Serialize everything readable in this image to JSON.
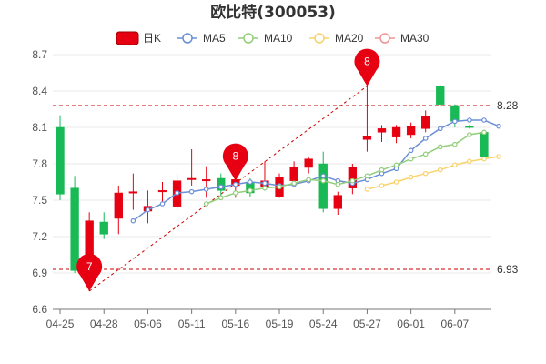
{
  "chart_data": {
    "type": "candlestick",
    "title": "欧比特(300053)",
    "grid": true,
    "legend_position": "top",
    "colors": {
      "up": "#e60012",
      "down": "#19b955",
      "ma5": "#6b8fd6",
      "ma10": "#93ce7a",
      "ma20": "#f9d26a",
      "ma30": "#f29494",
      "ref_line": "#cc0000",
      "pin": "#e60012",
      "grid": "#e8e8e8"
    },
    "legend": [
      {
        "key": "k",
        "label": "日K"
      },
      {
        "key": "ma5",
        "label": "MA5"
      },
      {
        "key": "ma10",
        "label": "MA10"
      },
      {
        "key": "ma20",
        "label": "MA20"
      },
      {
        "key": "ma30",
        "label": "MA30"
      }
    ],
    "ylim": [
      6.6,
      8.7
    ],
    "y_ticks": [
      "6.6",
      "6.9",
      "7.2",
      "7.5",
      "7.8",
      "8.1",
      "8.4",
      "8.7"
    ],
    "x_ticks": [
      {
        "index": 0,
        "label": "04-25"
      },
      {
        "index": 3,
        "label": "04-28"
      },
      {
        "index": 6,
        "label": "05-06"
      },
      {
        "index": 9,
        "label": "05-11"
      },
      {
        "index": 12,
        "label": "05-16"
      },
      {
        "index": 15,
        "label": "05-19"
      },
      {
        "index": 18,
        "label": "05-24"
      },
      {
        "index": 21,
        "label": "05-27"
      },
      {
        "index": 24,
        "label": "06-01"
      },
      {
        "index": 27,
        "label": "06-07"
      }
    ],
    "candles": [
      {
        "o": 8.1,
        "c": 7.55,
        "h": 8.2,
        "l": 7.5
      },
      {
        "o": 7.6,
        "c": 6.92,
        "h": 7.7,
        "l": 6.9
      },
      {
        "o": 6.92,
        "c": 7.33,
        "h": 7.4,
        "l": 6.75
      },
      {
        "o": 7.32,
        "c": 7.22,
        "h": 7.4,
        "l": 7.18
      },
      {
        "o": 7.35,
        "c": 7.56,
        "h": 7.62,
        "l": 7.22
      },
      {
        "o": 7.57,
        "c": 7.57,
        "h": 7.72,
        "l": 7.42
      },
      {
        "o": 7.41,
        "c": 7.45,
        "h": 7.58,
        "l": 7.31
      },
      {
        "o": 7.58,
        "c": 7.58,
        "h": 7.65,
        "l": 7.47
      },
      {
        "o": 7.45,
        "c": 7.66,
        "h": 7.72,
        "l": 7.42
      },
      {
        "o": 7.67,
        "c": 7.68,
        "h": 7.92,
        "l": 7.62
      },
      {
        "o": 7.66,
        "c": 7.67,
        "h": 7.78,
        "l": 7.52
      },
      {
        "o": 7.68,
        "c": 7.58,
        "h": 7.72,
        "l": 7.52
      },
      {
        "o": 7.62,
        "c": 7.67,
        "h": 7.72,
        "l": 7.52
      },
      {
        "o": 7.65,
        "c": 7.56,
        "h": 7.68,
        "l": 7.53
      },
      {
        "o": 7.61,
        "c": 7.66,
        "h": 7.82,
        "l": 7.58
      },
      {
        "o": 7.53,
        "c": 7.69,
        "h": 7.72,
        "l": 7.52
      },
      {
        "o": 7.66,
        "c": 7.77,
        "h": 7.82,
        "l": 7.62
      },
      {
        "o": 7.77,
        "c": 7.84,
        "h": 7.86,
        "l": 7.72
      },
      {
        "o": 7.8,
        "c": 7.43,
        "h": 7.9,
        "l": 7.4
      },
      {
        "o": 7.43,
        "c": 7.54,
        "h": 7.57,
        "l": 7.38
      },
      {
        "o": 7.6,
        "c": 7.77,
        "h": 7.8,
        "l": 7.55
      },
      {
        "o": 8.0,
        "c": 8.03,
        "h": 8.44,
        "l": 7.9
      },
      {
        "o": 8.06,
        "c": 8.09,
        "h": 8.12,
        "l": 7.98
      },
      {
        "o": 8.02,
        "c": 8.1,
        "h": 8.12,
        "l": 7.97
      },
      {
        "o": 8.04,
        "c": 8.11,
        "h": 8.14,
        "l": 8.01
      },
      {
        "o": 8.09,
        "c": 8.19,
        "h": 8.24,
        "l": 8.06
      },
      {
        "o": 8.44,
        "c": 8.29,
        "h": 8.45,
        "l": 8.27
      },
      {
        "o": 8.28,
        "c": 8.15,
        "h": 8.29,
        "l": 8.1
      },
      {
        "o": 8.11,
        "c": 8.1,
        "h": 8.12,
        "l": 8.09
      },
      {
        "o": 8.06,
        "c": 7.86,
        "h": 8.08,
        "l": 7.84
      }
    ],
    "ma": [
      {
        "name": "MA5",
        "key": "ma5",
        "start": 5,
        "values": [
          7.33,
          7.42,
          7.47,
          7.56,
          7.57,
          7.59,
          7.61,
          7.63,
          7.65,
          7.64,
          7.62,
          7.63,
          7.66,
          7.7,
          7.66,
          7.64,
          7.67,
          7.72,
          7.76,
          7.91,
          8.01,
          8.09,
          8.15,
          8.16,
          8.16,
          8.11
        ]
      },
      {
        "name": "MA10",
        "key": "ma10",
        "start": 10,
        "values": [
          7.47,
          7.52,
          7.56,
          7.58,
          7.6,
          7.61,
          7.64,
          7.67,
          7.66,
          7.63,
          7.66,
          7.7,
          7.75,
          7.79,
          7.84,
          7.88,
          7.94,
          7.96,
          8.04,
          8.06
        ]
      },
      {
        "name": "MA20",
        "key": "ma20",
        "start": 21,
        "values": [
          7.59,
          7.62,
          7.65,
          7.69,
          7.72,
          7.75,
          7.79,
          7.82,
          7.84,
          7.86
        ]
      }
    ],
    "reference_lines": [
      {
        "value": 8.28,
        "label": "8.28"
      },
      {
        "value": 6.93,
        "label": "6.93"
      }
    ],
    "markers": [
      {
        "index": 2,
        "value": 6.75,
        "label": "7"
      },
      {
        "index": 12,
        "value": 7.66,
        "label": "8"
      },
      {
        "index": 21,
        "value": 8.44,
        "label": "8"
      }
    ]
  }
}
